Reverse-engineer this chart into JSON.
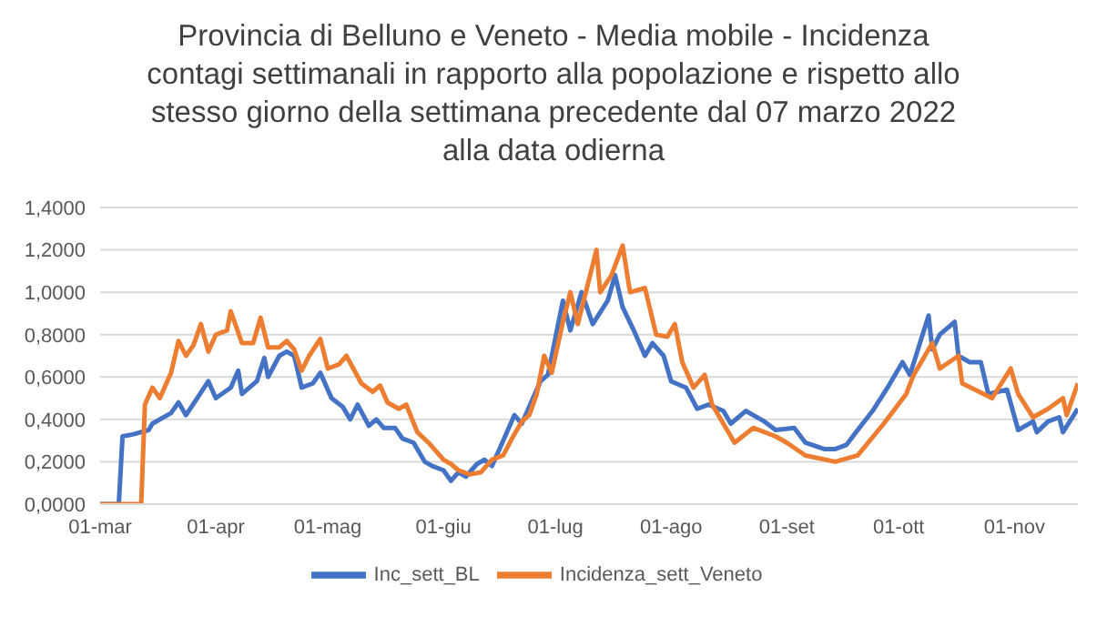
{
  "chart_data": {
    "type": "line",
    "title": "Provincia di Belluno e Veneto - Media mobile - Incidenza contagi settimanali in rapporto alla popolazione e rispetto allo stesso giorno della settimana precedente dal 07 marzo 2022 alla data odierna",
    "xlim": [
      "--03-01",
      "--11-18"
    ],
    "xticks": [
      {
        "value": "--03-01",
        "label": "01-mar"
      },
      {
        "value": "--04-01",
        "label": "01-apr"
      },
      {
        "value": "--05-01",
        "label": "01-mag"
      },
      {
        "value": "--06-01",
        "label": "01-giu"
      },
      {
        "value": "--07-01",
        "label": "01-lug"
      },
      {
        "value": "--08-01",
        "label": "01-ago"
      },
      {
        "value": "--09-01",
        "label": "01-set"
      },
      {
        "value": "--10-01",
        "label": "01-ott"
      },
      {
        "value": "--11-01",
        "label": "01-nov"
      }
    ],
    "ylim": [
      0,
      1.4
    ],
    "yticks": [
      {
        "value": 0,
        "label": "0,0000"
      },
      {
        "value": 0.2,
        "label": "0,2000"
      },
      {
        "value": 0.4,
        "label": "0,4000"
      },
      {
        "value": 0.6,
        "label": "0,6000"
      },
      {
        "value": 0.8,
        "label": "0,8000"
      },
      {
        "value": 1.0,
        "label": "1,0000"
      },
      {
        "value": 1.2,
        "label": "1,2000"
      },
      {
        "value": 1.4,
        "label": "1,4000"
      }
    ],
    "grid": "y",
    "legend": "bottom",
    "marker": "none",
    "line_style": "solid",
    "series": [
      {
        "name": "Inc_sett_BL",
        "color": "#4472c4",
        "x": [
          "--03-01",
          "--03-06",
          "--03-07",
          "--03-10",
          "--03-14",
          "--03-15",
          "--03-20",
          "--03-22",
          "--03-24",
          "--03-27",
          "--03-30",
          "--04-01",
          "--04-05",
          "--04-07",
          "--04-08",
          "--04-12",
          "--04-14",
          "--04-15",
          "--04-18",
          "--04-20",
          "--04-22",
          "--04-24",
          "--04-27",
          "--04-29",
          "--05-02",
          "--05-05",
          "--05-07",
          "--05-09",
          "--05-12",
          "--05-14",
          "--05-16",
          "--05-19",
          "--05-21",
          "--05-24",
          "--05-27",
          "--05-29",
          "--06-01",
          "--06-03",
          "--06-05",
          "--06-07",
          "--06-10",
          "--06-12",
          "--06-14",
          "--06-17",
          "--06-20",
          "--06-22",
          "--06-25",
          "--06-27",
          "--06-29",
          "--07-03",
          "--07-05",
          "--07-08",
          "--07-11",
          "--07-15",
          "--07-17",
          "--07-19",
          "--07-22",
          "--07-25",
          "--07-27",
          "--07-30",
          "--08-01",
          "--08-05",
          "--08-08",
          "--08-11",
          "--08-15",
          "--08-17",
          "--08-21",
          "--08-26",
          "--08-29",
          "--09-03",
          "--09-06",
          "--09-11",
          "--09-14",
          "--09-17",
          "--09-20",
          "--09-24",
          "--09-28",
          "--10-02",
          "--10-04",
          "--10-09",
          "--10-10",
          "--10-12",
          "--10-16",
          "--10-17",
          "--10-20",
          "--10-23",
          "--10-25",
          "--10-30",
          "--11-02",
          "--11-06",
          "--11-07",
          "--11-10",
          "--11-13",
          "--11-14",
          "--11-18"
        ],
        "values": [
          0,
          0,
          0.32,
          0.33,
          0.35,
          0.38,
          0.43,
          0.48,
          0.42,
          0.5,
          0.58,
          0.5,
          0.55,
          0.63,
          0.52,
          0.58,
          0.69,
          0.6,
          0.7,
          0.72,
          0.7,
          0.55,
          0.57,
          0.62,
          0.5,
          0.46,
          0.4,
          0.47,
          0.37,
          0.4,
          0.36,
          0.36,
          0.31,
          0.29,
          0.2,
          0.18,
          0.16,
          0.11,
          0.15,
          0.13,
          0.19,
          0.21,
          0.18,
          0.3,
          0.42,
          0.38,
          0.5,
          0.58,
          0.61,
          0.96,
          0.82,
          1.0,
          0.85,
          0.96,
          1.08,
          0.93,
          0.82,
          0.7,
          0.76,
          0.7,
          0.58,
          0.55,
          0.45,
          0.47,
          0.44,
          0.38,
          0.44,
          0.39,
          0.35,
          0.36,
          0.29,
          0.26,
          0.26,
          0.28,
          0.35,
          0.44,
          0.55,
          0.67,
          0.61,
          0.89,
          0.73,
          0.8,
          0.86,
          0.7,
          0.67,
          0.67,
          0.52,
          0.54,
          0.35,
          0.39,
          0.34,
          0.39,
          0.41,
          0.34,
          0.45
        ]
      },
      {
        "name": "Incidenza_sett_Veneto",
        "color": "#ed7d31",
        "x": [
          "--03-01",
          "--03-12",
          "--03-13",
          "--03-15",
          "--03-17",
          "--03-20",
          "--03-22",
          "--03-24",
          "--03-26",
          "--03-28",
          "--03-30",
          "--04-01",
          "--04-04",
          "--04-05",
          "--04-08",
          "--04-11",
          "--04-13",
          "--04-15",
          "--04-18",
          "--04-20",
          "--04-22",
          "--04-24",
          "--04-26",
          "--04-29",
          "--05-01",
          "--05-04",
          "--05-06",
          "--05-10",
          "--05-13",
          "--05-15",
          "--05-17",
          "--05-20",
          "--05-22",
          "--05-25",
          "--05-28",
          "--06-01",
          "--06-03",
          "--06-05",
          "--06-08",
          "--06-11",
          "--06-14",
          "--06-17",
          "--06-20",
          "--06-22",
          "--06-24",
          "--06-26",
          "--06-28",
          "--06-30",
          "--07-03",
          "--07-05",
          "--07-07",
          "--07-12",
          "--07-13",
          "--07-16",
          "--07-19",
          "--07-21",
          "--07-25",
          "--07-28",
          "--07-31",
          "--08-02",
          "--08-04",
          "--08-07",
          "--08-10",
          "--08-12",
          "--08-18",
          "--08-23",
          "--08-29",
          "--09-01",
          "--09-06",
          "--09-14",
          "--09-20",
          "--09-27",
          "--10-03",
          "--10-05",
          "--10-10",
          "--10-12",
          "--10-17",
          "--10-18",
          "--10-26",
          "--10-31",
          "--11-02",
          "--11-06",
          "--11-10",
          "--11-14",
          "--11-15",
          "--11-18"
        ],
        "values": [
          0,
          0,
          0.47,
          0.55,
          0.5,
          0.62,
          0.77,
          0.7,
          0.75,
          0.85,
          0.72,
          0.8,
          0.82,
          0.91,
          0.76,
          0.76,
          0.88,
          0.74,
          0.74,
          0.77,
          0.73,
          0.63,
          0.7,
          0.78,
          0.64,
          0.66,
          0.7,
          0.57,
          0.53,
          0.56,
          0.48,
          0.45,
          0.47,
          0.34,
          0.29,
          0.21,
          0.19,
          0.16,
          0.14,
          0.15,
          0.21,
          0.23,
          0.33,
          0.39,
          0.42,
          0.52,
          0.7,
          0.62,
          0.86,
          1.0,
          0.85,
          1.2,
          1.0,
          1.08,
          1.22,
          1.0,
          1.02,
          0.8,
          0.79,
          0.85,
          0.67,
          0.55,
          0.61,
          0.47,
          0.29,
          0.36,
          0.32,
          0.29,
          0.23,
          0.2,
          0.23,
          0.38,
          0.52,
          0.61,
          0.76,
          0.64,
          0.7,
          0.57,
          0.5,
          0.64,
          0.52,
          0.41,
          0.45,
          0.5,
          0.42,
          0.57
        ]
      }
    ]
  }
}
